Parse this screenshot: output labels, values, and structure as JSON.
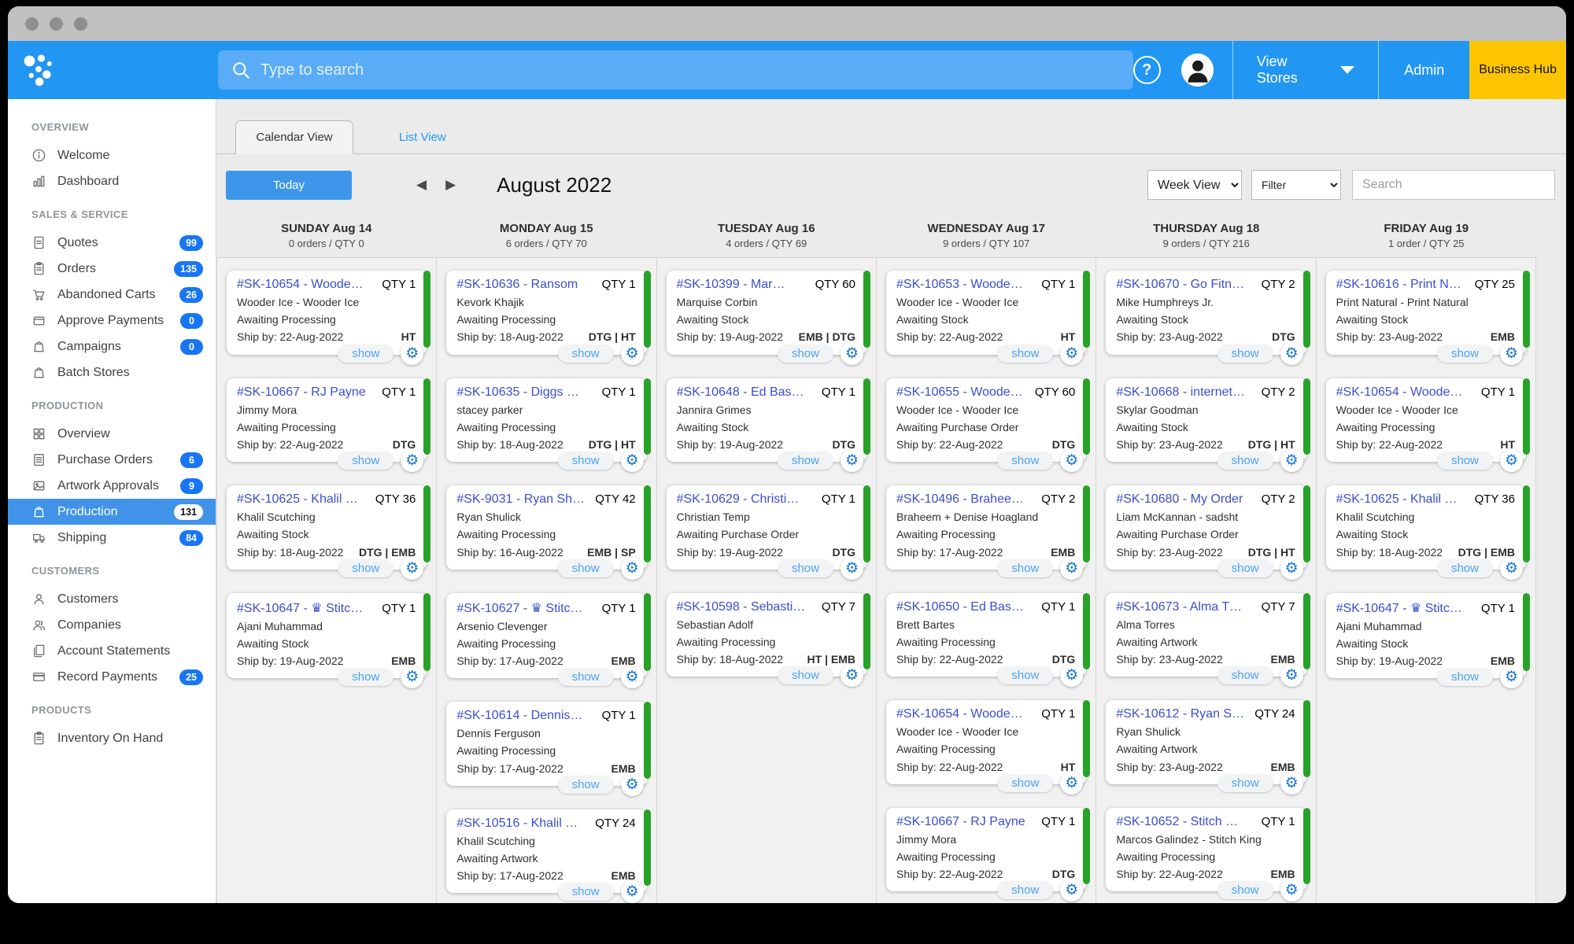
{
  "colors": {
    "header_blue": "#2196f3",
    "search_bar_blue": "#5bacf6",
    "business_hub_yellow": "#fdc500",
    "badge_blue": "#1876f2",
    "active_item_blue": "#4093e9",
    "order_link_blue": "#3b4ece",
    "card_bar_green": "#28a228",
    "show_link_blue": "#4da3f4",
    "gear_blue": "#1976d2",
    "today_button_blue": "#3d96ea"
  },
  "header": {
    "search_placeholder": "Type to search",
    "view_stores": "View Stores",
    "admin": "Admin",
    "business_hub": "Business Hub"
  },
  "sidebar": {
    "sections": [
      {
        "title": "OVERVIEW",
        "items": [
          {
            "label": "Welcome",
            "icon": "info-icon"
          },
          {
            "label": "Dashboard",
            "icon": "bar-chart-icon"
          }
        ]
      },
      {
        "title": "SALES & SERVICE",
        "items": [
          {
            "label": "Quotes",
            "icon": "document-icon",
            "badge": "99"
          },
          {
            "label": "Orders",
            "icon": "clipboard-icon",
            "badge": "135"
          },
          {
            "label": "Abandoned Carts",
            "icon": "cart-icon",
            "badge": "26"
          },
          {
            "label": "Approve Payments",
            "icon": "wallet-icon",
            "badge": "0"
          },
          {
            "label": "Campaigns",
            "icon": "bag-icon",
            "badge": "0"
          },
          {
            "label": "Batch Stores",
            "icon": "bag-icon"
          }
        ]
      },
      {
        "title": "PRODUCTION",
        "items": [
          {
            "label": "Overview",
            "icon": "grid-icon"
          },
          {
            "label": "Purchase Orders",
            "icon": "document-lines-icon",
            "badge": "6"
          },
          {
            "label": "Artwork Approvals",
            "icon": "image-icon",
            "badge": "9"
          },
          {
            "label": "Production",
            "icon": "bag-icon",
            "badge": "131",
            "active": true
          },
          {
            "label": "Shipping",
            "icon": "truck-icon",
            "badge": "84"
          }
        ]
      },
      {
        "title": "CUSTOMERS",
        "items": [
          {
            "label": "Customers",
            "icon": "person-icon"
          },
          {
            "label": "Companies",
            "icon": "people-icon"
          },
          {
            "label": "Account Statements",
            "icon": "documents-icon"
          },
          {
            "label": "Record Payments",
            "icon": "credit-card-icon",
            "badge": "25"
          }
        ]
      },
      {
        "title": "PRODUCTS",
        "items": [
          {
            "label": "Inventory On Hand",
            "icon": "clipboard-icon"
          }
        ]
      }
    ]
  },
  "tabs": {
    "calendar": "Calendar View",
    "list": "List View"
  },
  "toolbar": {
    "today": "Today",
    "month_title": "August 2022",
    "week_view": "Week View",
    "filter": "Filter",
    "search_placeholder": "Search"
  },
  "labels": {
    "show": "show"
  },
  "calendar": {
    "days": [
      {
        "name": "SUNDAY Aug 14",
        "summary": "0 orders / QTY 0",
        "orders": [
          {
            "id": "#SK-10654 - Woode…",
            "qty": "QTY 1",
            "customer": "Wooder Ice - Wooder Ice",
            "status": "Awaiting Processing",
            "ship": "Ship by: 22-Aug-2022",
            "tags": "HT"
          },
          {
            "id": "#SK-10667 - RJ Payne",
            "qty": "QTY 1",
            "customer": "Jimmy Mora",
            "status": "Awaiting Processing",
            "ship": "Ship by: 22-Aug-2022",
            "tags": "DTG"
          },
          {
            "id": "#SK-10625 - Khalil …",
            "qty": "QTY 36",
            "customer": "Khalil Scutching",
            "status": "Awaiting Stock",
            "ship": "Ship by: 18-Aug-2022",
            "tags": "DTG | EMB"
          },
          {
            "id": "#SK-10647 - ♛ Stitc…",
            "qty": "QTY 1",
            "customer": "Ajani Muhammad",
            "status": "Awaiting Stock",
            "ship": "Ship by: 19-Aug-2022",
            "tags": "EMB"
          }
        ]
      },
      {
        "name": "MONDAY Aug 15",
        "summary": "6 orders / QTY 70",
        "orders": [
          {
            "id": "#SK-10636 - Ransom",
            "qty": "QTY 1",
            "customer": "Kevork Khajik",
            "status": "Awaiting Processing",
            "ship": "Ship by: 18-Aug-2022",
            "tags": "DTG | HT"
          },
          {
            "id": "#SK-10635 - Diggs …",
            "qty": "QTY 1",
            "customer": "stacey parker",
            "status": "Awaiting Processing",
            "ship": "Ship by: 18-Aug-2022",
            "tags": "DTG | HT"
          },
          {
            "id": "#SK-9031 - Ryan Sh…",
            "qty": "QTY 42",
            "customer": "Ryan Shulick",
            "status": "Awaiting Processing",
            "ship": "Ship by: 16-Aug-2022",
            "tags": "EMB | SP"
          },
          {
            "id": "#SK-10627 - ♛ Stitc…",
            "qty": "QTY 1",
            "customer": "Arsenio Clevenger",
            "status": "Awaiting Processing",
            "ship": "Ship by: 17-Aug-2022",
            "tags": "EMB"
          },
          {
            "id": "#SK-10614 - Dennis…",
            "qty": "QTY 1",
            "customer": "Dennis Ferguson",
            "status": "Awaiting Processing",
            "ship": "Ship by: 17-Aug-2022",
            "tags": "EMB"
          },
          {
            "id": "#SK-10516 - Khalil …",
            "qty": "QTY 24",
            "customer": "Khalil Scutching",
            "status": "Awaiting Artwork",
            "ship": "Ship by: 17-Aug-2022",
            "tags": "EMB"
          }
        ]
      },
      {
        "name": "TUESDAY Aug 16",
        "summary": "4 orders / QTY 69",
        "orders": [
          {
            "id": "#SK-10399 - Mar…",
            "qty": "QTY 60",
            "customer": "Marquise Corbin",
            "status": "Awaiting Stock",
            "ship": "Ship by: 19-Aug-2022",
            "tags": "EMB | DTG"
          },
          {
            "id": "#SK-10648 - Ed Bas…",
            "qty": "QTY 1",
            "customer": "Jannira Grimes",
            "status": "Awaiting Stock",
            "ship": "Ship by: 19-Aug-2022",
            "tags": "DTG"
          },
          {
            "id": "#SK-10629 - Christi…",
            "qty": "QTY 1",
            "customer": "Christian Temp",
            "status": "Awaiting Purchase Order",
            "ship": "Ship by: 19-Aug-2022",
            "tags": "DTG"
          },
          {
            "id": "#SK-10598 - Sebasti…",
            "qty": "QTY 7",
            "customer": "Sebastian Adolf",
            "status": "Awaiting Processing",
            "ship": "Ship by: 18-Aug-2022",
            "tags": "HT | EMB"
          }
        ]
      },
      {
        "name": "WEDNESDAY Aug 17",
        "summary": "9 orders / QTY 107",
        "orders": [
          {
            "id": "#SK-10653 - Woode…",
            "qty": "QTY 1",
            "customer": "Wooder Ice - Wooder Ice",
            "status": "Awaiting Stock",
            "ship": "Ship by: 22-Aug-2022",
            "tags": "HT"
          },
          {
            "id": "#SK-10655 - Woode…",
            "qty": "QTY 60",
            "customer": "Wooder Ice - Wooder Ice",
            "status": "Awaiting Purchase Order",
            "ship": "Ship by: 22-Aug-2022",
            "tags": "DTG"
          },
          {
            "id": "#SK-10496 - Brahee…",
            "qty": "QTY 2",
            "customer": "Braheem + Denise Hoagland",
            "status": "Awaiting Processing",
            "ship": "Ship by: 17-Aug-2022",
            "tags": "EMB"
          },
          {
            "id": "#SK-10650 - Ed Bas…",
            "qty": "QTY 1",
            "customer": "Brett Bartes",
            "status": "Awaiting Processing",
            "ship": "Ship by: 22-Aug-2022",
            "tags": "DTG"
          },
          {
            "id": "#SK-10654 - Woode…",
            "qty": "QTY 1",
            "customer": "Wooder Ice - Wooder Ice",
            "status": "Awaiting Processing",
            "ship": "Ship by: 22-Aug-2022",
            "tags": "HT"
          },
          {
            "id": "#SK-10667 - RJ Payne",
            "qty": "QTY 1",
            "customer": "Jimmy Mora",
            "status": "Awaiting Processing",
            "ship": "Ship by: 22-Aug-2022",
            "tags": "DTG"
          }
        ]
      },
      {
        "name": "THURSDAY Aug 18",
        "summary": "9 orders / QTY 216",
        "orders": [
          {
            "id": "#SK-10670 - Go Fitn…",
            "qty": "QTY 2",
            "customer": "Mike Humphreys Jr.",
            "status": "Awaiting Stock",
            "ship": "Ship by: 23-Aug-2022",
            "tags": "DTG"
          },
          {
            "id": "#SK-10668 - internet…",
            "qty": "QTY 2",
            "customer": "Skylar Goodman",
            "status": "Awaiting Stock",
            "ship": "Ship by: 23-Aug-2022",
            "tags": "DTG | HT"
          },
          {
            "id": "#SK-10680 - My Order",
            "qty": "QTY 2",
            "customer": "Liam McKannan - sadsht",
            "status": "Awaiting Purchase Order",
            "ship": "Ship by: 23-Aug-2022",
            "tags": "DTG | HT"
          },
          {
            "id": "#SK-10673 - Alma T…",
            "qty": "QTY 7",
            "customer": "Alma Torres",
            "status": "Awaiting Artwork",
            "ship": "Ship by: 23-Aug-2022",
            "tags": "EMB"
          },
          {
            "id": "#SK-10612 - Ryan S…",
            "qty": "QTY 24",
            "customer": "Ryan Shulick",
            "status": "Awaiting Artwork",
            "ship": "Ship by: 23-Aug-2022",
            "tags": "EMB"
          },
          {
            "id": "#SK-10652 - Stitch …",
            "qty": "QTY 1",
            "customer": "Marcos Galindez - Stitch King",
            "status": "Awaiting Processing",
            "ship": "Ship by: 22-Aug-2022",
            "tags": "EMB"
          }
        ]
      },
      {
        "name": "FRIDAY Aug 19",
        "summary": "1 order / QTY 25",
        "orders": [
          {
            "id": "#SK-10616 - Print N…",
            "qty": "QTY 25",
            "customer": "Print Natural - Print Natural",
            "status": "Awaiting Stock",
            "ship": "Ship by: 23-Aug-2022",
            "tags": "EMB"
          },
          {
            "id": "#SK-10654 - Woode…",
            "qty": "QTY 1",
            "customer": "Wooder Ice - Wooder Ice",
            "status": "Awaiting Processing",
            "ship": "Ship by: 22-Aug-2022",
            "tags": "HT"
          },
          {
            "id": "#SK-10625 - Khalil …",
            "qty": "QTY 36",
            "customer": "Khalil Scutching",
            "status": "Awaiting Stock",
            "ship": "Ship by: 18-Aug-2022",
            "tags": "DTG | EMB"
          },
          {
            "id": "#SK-10647 - ♛ Stitc…",
            "qty": "QTY 1",
            "customer": "Ajani Muhammad",
            "status": "Awaiting Stock",
            "ship": "Ship by: 19-Aug-2022",
            "tags": "EMB"
          }
        ]
      }
    ]
  }
}
